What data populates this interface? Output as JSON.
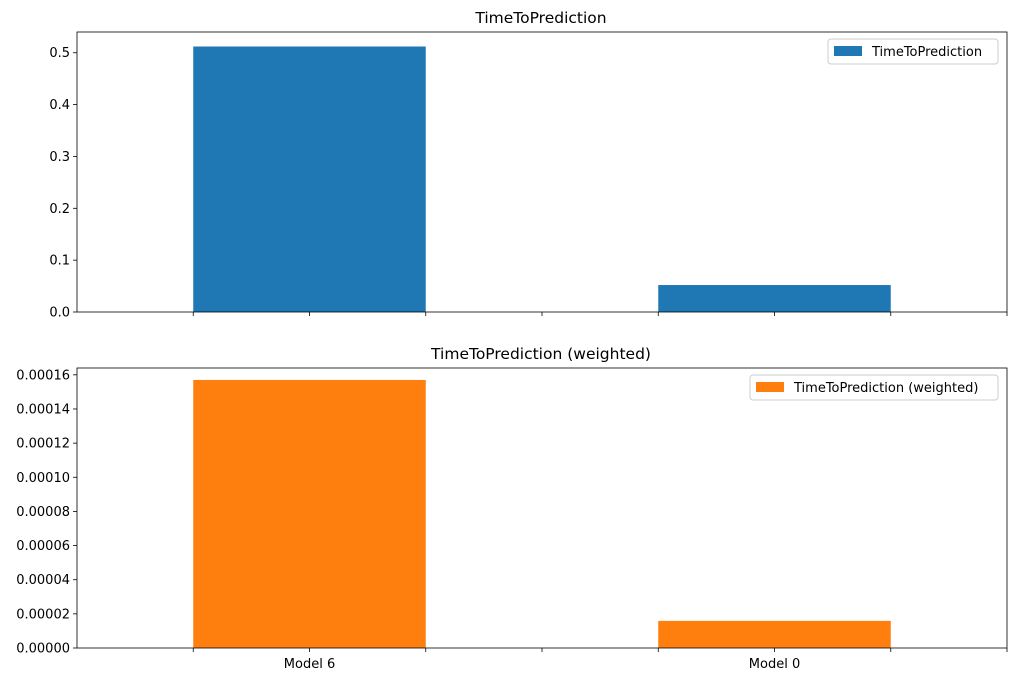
{
  "chart_data": [
    {
      "type": "bar",
      "title": "TimeToPrediction",
      "categories": [
        "Model 6",
        "Model 0"
      ],
      "series": [
        {
          "name": "TimeToPrediction",
          "values": [
            0.512,
            0.052
          ],
          "color": "#1f77b4"
        }
      ],
      "ylim": [
        0,
        0.54
      ],
      "yticks": [
        0.0,
        0.1,
        0.2,
        0.3,
        0.4,
        0.5
      ],
      "ytick_labels": [
        "0.0",
        "0.1",
        "0.2",
        "0.3",
        "0.4",
        "0.5"
      ],
      "show_xtick_labels": false,
      "legend": "top-right",
      "grid": false
    },
    {
      "type": "bar",
      "title": "TimeToPrediction (weighted)",
      "categories": [
        "Model 6",
        "Model 0"
      ],
      "series": [
        {
          "name": "TimeToPrediction (weighted)",
          "values": [
            0.000157,
            1.59e-05
          ],
          "color": "#ff7f0e"
        }
      ],
      "ylim": [
        0,
        0.000164
      ],
      "yticks": [
        0,
        2e-05,
        4e-05,
        6e-05,
        8e-05,
        0.0001,
        0.00012,
        0.00014,
        0.00016
      ],
      "ytick_labels": [
        "0.00000",
        "0.00002",
        "0.00004",
        "0.00006",
        "0.00008",
        "0.00010",
        "0.00012",
        "0.00014",
        "0.00016"
      ],
      "show_xtick_labels": true,
      "legend": "top-right",
      "grid": false
    }
  ]
}
